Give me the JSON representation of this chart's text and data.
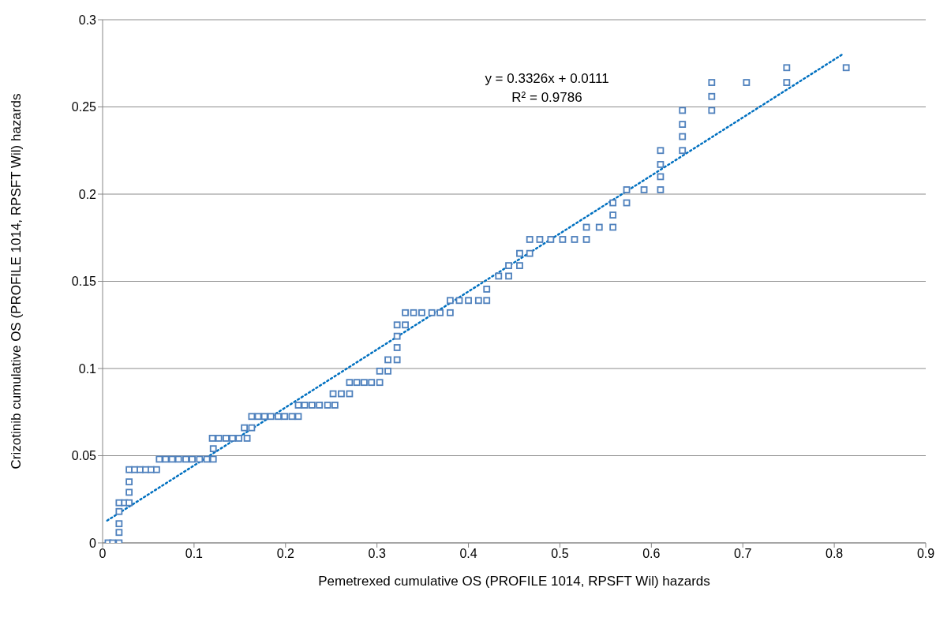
{
  "chart_data": {
    "type": "scatter",
    "xlabel": "Pemetrexed cumulative OS (PROFILE 1014, RPSFT Wil) hazards",
    "ylabel": "Crizotinib cumulative OS (PROFILE 1014, RPSFT Wil) hazards",
    "annotations": [
      "y = 0.3326x + 0.0111",
      "R² = 0.9786"
    ],
    "xlim": [
      0,
      0.9
    ],
    "xticks": [
      0,
      0.1,
      0.2,
      0.3,
      0.4,
      0.5,
      0.6,
      0.7,
      0.8,
      0.9
    ],
    "ylim": [
      0,
      0.3
    ],
    "yticks": [
      0,
      0.05,
      0.1,
      0.15,
      0.2,
      0.25,
      0.3
    ],
    "grid": "y",
    "marker": "square",
    "series": [
      {
        "color": "#4f81bd",
        "x": [
          0.006,
          0.011,
          0.018,
          0.018,
          0.018,
          0.018,
          0.018,
          0.024,
          0.029,
          0.029,
          0.029,
          0.029,
          0.035,
          0.041,
          0.047,
          0.053,
          0.059,
          0.062,
          0.069,
          0.076,
          0.083,
          0.091,
          0.098,
          0.106,
          0.114,
          0.121,
          0.121,
          0.12,
          0.127,
          0.135,
          0.142,
          0.149,
          0.158,
          0.155,
          0.163,
          0.163,
          0.17,
          0.177,
          0.184,
          0.192,
          0.199,
          0.207,
          0.214,
          0.214,
          0.221,
          0.229,
          0.237,
          0.246,
          0.254,
          0.252,
          0.261,
          0.27,
          0.27,
          0.278,
          0.286,
          0.294,
          0.303,
          0.303,
          0.312,
          0.312,
          0.322,
          0.322,
          0.322,
          0.322,
          0.331,
          0.331,
          0.34,
          0.349,
          0.36,
          0.369,
          0.38,
          0.38,
          0.39,
          0.4,
          0.411,
          0.42,
          0.42,
          0.433,
          0.444,
          0.444,
          0.456,
          0.456,
          0.467,
          0.467,
          0.478,
          0.49,
          0.503,
          0.516,
          0.529,
          0.529,
          0.543,
          0.558,
          0.558,
          0.558,
          0.573,
          0.573,
          0.592,
          0.61,
          0.61,
          0.61,
          0.61,
          0.634,
          0.634,
          0.634,
          0.634,
          0.666,
          0.666,
          0.666,
          0.704,
          0.748,
          0.748,
          0.813
        ],
        "values": [
          0,
          0,
          0,
          0.006,
          0.011,
          0.018,
          0.023,
          0.023,
          0.023,
          0.029,
          0.035,
          0.042,
          0.042,
          0.042,
          0.042,
          0.042,
          0.042,
          0.048,
          0.048,
          0.048,
          0.048,
          0.048,
          0.048,
          0.048,
          0.048,
          0.048,
          0.054,
          0.06,
          0.06,
          0.06,
          0.06,
          0.06,
          0.06,
          0.066,
          0.066,
          0.0725,
          0.0725,
          0.0725,
          0.0725,
          0.0725,
          0.0725,
          0.0725,
          0.0725,
          0.079,
          0.079,
          0.079,
          0.079,
          0.079,
          0.079,
          0.0855,
          0.0855,
          0.0855,
          0.092,
          0.092,
          0.092,
          0.092,
          0.092,
          0.0985,
          0.0985,
          0.105,
          0.105,
          0.112,
          0.1185,
          0.125,
          0.125,
          0.132,
          0.132,
          0.132,
          0.132,
          0.132,
          0.132,
          0.139,
          0.139,
          0.139,
          0.139,
          0.139,
          0.1455,
          0.153,
          0.153,
          0.159,
          0.159,
          0.166,
          0.166,
          0.174,
          0.174,
          0.174,
          0.174,
          0.174,
          0.174,
          0.181,
          0.181,
          0.181,
          0.188,
          0.195,
          0.195,
          0.2025,
          0.2025,
          0.2025,
          0.21,
          0.217,
          0.225,
          0.225,
          0.233,
          0.24,
          0.248,
          0.248,
          0.256,
          0.264,
          0.264,
          0.264,
          0.2725,
          0.2725
        ]
      },
      {
        "type": "line",
        "color": "#0070c0",
        "marker": "none",
        "line_style": "dotted",
        "x": [
          0.005,
          0.81
        ],
        "values": [
          0.0128,
          0.2805
        ]
      }
    ]
  }
}
